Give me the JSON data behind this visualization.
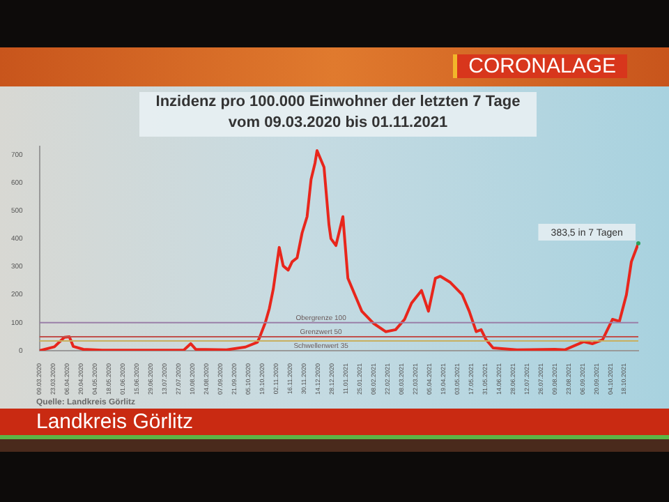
{
  "chart_data": {
    "type": "line",
    "title": "Inzidenz pro 100.000 Einwohner der letzten 7 Tage",
    "subtitle": "vom 09.03.2020 bis 01.11.2021",
    "x": [
      "2020-03-09",
      "2020-03-24",
      "2020-04-03",
      "2020-04-08",
      "2020-04-12",
      "2020-04-22",
      "2020-05-11",
      "2020-08-01",
      "2020-08-08",
      "2020-08-13",
      "2020-09-13",
      "2020-10-02",
      "2020-10-14",
      "2020-10-16",
      "2020-10-22",
      "2020-10-26",
      "2020-10-30",
      "2020-11-05",
      "2020-11-09",
      "2020-11-14",
      "2020-11-18",
      "2020-11-23",
      "2020-11-28",
      "2020-12-03",
      "2020-12-07",
      "2020-12-11",
      "2020-12-13",
      "2020-12-20",
      "2020-12-25",
      "2020-12-27",
      "2021-01-01",
      "2021-01-08",
      "2021-01-13",
      "2021-01-20",
      "2021-01-27",
      "2021-02-08",
      "2021-02-20",
      "2021-03-02",
      "2021-03-11",
      "2021-03-18",
      "2021-03-28",
      "2021-04-04",
      "2021-04-11",
      "2021-04-16",
      "2021-04-26",
      "2021-05-08",
      "2021-05-15",
      "2021-05-22",
      "2021-05-27",
      "2021-06-01",
      "2021-06-08",
      "2021-07-02",
      "2021-08-09",
      "2021-08-19",
      "2021-09-07",
      "2021-09-16",
      "2021-09-26",
      "2021-10-06",
      "2021-10-13",
      "2021-10-20",
      "2021-10-25",
      "2021-11-01"
    ],
    "series": [
      {
        "color": "#e8261c",
        "values": [
          0,
          14,
          48,
          50,
          15,
          5,
          2,
          2,
          25,
          5,
          3,
          13,
          30,
          45,
          100,
          150,
          220,
          369,
          303,
          288,
          318,
          332,
          421,
          479,
          612,
          671,
          715,
          656,
          450,
          400,
          376,
          479,
          259,
          200,
          141,
          97,
          68,
          75,
          112,
          170,
          215,
          141,
          259,
          266,
          244,
          200,
          141,
          68,
          75,
          39,
          10,
          3,
          5,
          3,
          32,
          25,
          39,
          112,
          105,
          200,
          318,
          383.5
        ]
      }
    ],
    "xlim": [
      "2020-03-09",
      "2021-11-01"
    ],
    "xticks": [
      {
        "value": "2020-03-09",
        "label": "09.03.2020"
      },
      {
        "value": "2020-03-23",
        "label": "23.03.2020"
      },
      {
        "value": "2020-04-06",
        "label": "06.04.2020"
      },
      {
        "value": "2020-04-20",
        "label": "20.04.2020"
      },
      {
        "value": "2020-05-04",
        "label": "04.05.2020"
      },
      {
        "value": "2020-05-18",
        "label": "18.05.2020"
      },
      {
        "value": "2020-06-01",
        "label": "01.06.2020"
      },
      {
        "value": "2020-06-15",
        "label": "15.06.2020"
      },
      {
        "value": "2020-06-29",
        "label": "29.06.2020"
      },
      {
        "value": "2020-07-13",
        "label": "13.07.2020"
      },
      {
        "value": "2020-07-27",
        "label": "27.07.2020"
      },
      {
        "value": "2020-08-10",
        "label": "10.08.2020"
      },
      {
        "value": "2020-08-24",
        "label": "24.08.2020"
      },
      {
        "value": "2020-09-07",
        "label": "07.09.2020"
      },
      {
        "value": "2020-09-21",
        "label": "21.09.2020"
      },
      {
        "value": "2020-10-05",
        "label": "05.10.2020"
      },
      {
        "value": "2020-10-19",
        "label": "19.10.2020"
      },
      {
        "value": "2020-11-02",
        "label": "02.11.2020"
      },
      {
        "value": "2020-11-16",
        "label": "16.11.2020"
      },
      {
        "value": "2020-11-30",
        "label": "30.11.2020"
      },
      {
        "value": "2020-12-14",
        "label": "14.12.2020"
      },
      {
        "value": "2020-12-28",
        "label": "28.12.2020"
      },
      {
        "value": "2021-01-11",
        "label": "11.01.2021"
      },
      {
        "value": "2021-01-25",
        "label": "25.01.2021"
      },
      {
        "value": "2021-02-08",
        "label": "08.02.2021"
      },
      {
        "value": "2021-02-22",
        "label": "22.02.2021"
      },
      {
        "value": "2021-03-08",
        "label": "08.03.2021"
      },
      {
        "value": "2021-03-22",
        "label": "22.03.2021"
      },
      {
        "value": "2021-04-05",
        "label": "05.04.2021"
      },
      {
        "value": "2021-04-19",
        "label": "19.04.2021"
      },
      {
        "value": "2021-05-03",
        "label": "03.05.2021"
      },
      {
        "value": "2021-05-17",
        "label": "17.05.2021"
      },
      {
        "value": "2021-05-31",
        "label": "31.05.2021"
      },
      {
        "value": "2021-06-14",
        "label": "14.06.2021"
      },
      {
        "value": "2021-06-28",
        "label": "28.06.2021"
      },
      {
        "value": "2021-07-12",
        "label": "12.07.2021"
      },
      {
        "value": "2021-07-26",
        "label": "26.07.2021"
      },
      {
        "value": "2021-08-09",
        "label": "09.08.2021"
      },
      {
        "value": "2021-08-23",
        "label": "23.08.2021"
      },
      {
        "value": "2021-09-06",
        "label": "06.09.2021"
      },
      {
        "value": "2021-09-20",
        "label": "20.09.2021"
      },
      {
        "value": "2021-10-04",
        "label": "04.10.2021"
      },
      {
        "value": "2021-10-18",
        "label": "18.10.2021"
      }
    ],
    "ylim": [
      0,
      730
    ],
    "yticks": [
      0,
      100,
      200,
      300,
      400,
      500,
      600,
      700
    ],
    "marker": "none",
    "line_style": "solid",
    "ref_lines": [
      {
        "axis": "y",
        "value": 100,
        "label": "Obergrenze 100",
        "color": "#9a7fa8"
      },
      {
        "axis": "y",
        "value": 50,
        "label": "Grenzwert 50",
        "color": "#c0504d"
      },
      {
        "axis": "y",
        "value": 35,
        "label": "Schwellenwert 35",
        "color": "#c8b060"
      }
    ],
    "annotations": [
      {
        "text": "383,5 in 7 Tagen",
        "x": "2021-11-01",
        "y": 383.5
      },
      "Quelle: Landkreis Görlitz",
      "CORONALAGE",
      "Landkreis Görlitz"
    ]
  }
}
